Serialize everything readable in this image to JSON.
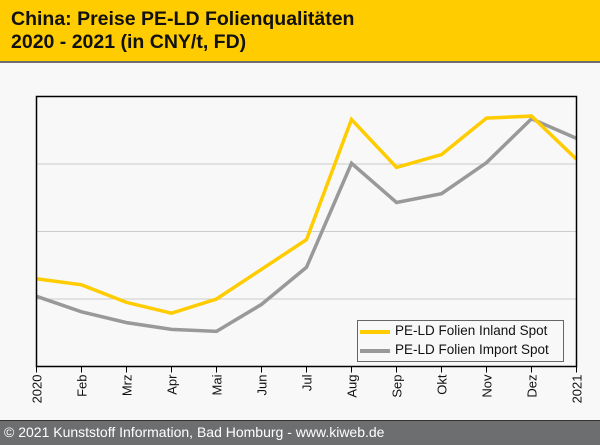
{
  "header": {
    "title_line1": "China: Preise PE-LD Folienqualitäten",
    "title_line2": "2020 - 2021 (in CNY/t, FD)"
  },
  "footer": {
    "text": "© 2021 Kunststoff Information, Bad Homburg - www.kiweb.de"
  },
  "colors": {
    "header_bg": "#ffcc00",
    "footer_bg": "#6d6e70",
    "inland": "#ffcc00",
    "import": "#999999",
    "grid": "#cccccc"
  },
  "chart_data": {
    "type": "line",
    "title": "China: Preise PE-LD Folienqualitäten 2020 - 2021 (in CNY/t, FD)",
    "xlabel": "",
    "ylabel": "",
    "y_units_note": "no y-axis tick labels shown; values in relative gridline units (0 = plot bottom, 4 = plot top)",
    "ylim": [
      0,
      4
    ],
    "y_gridlines": [
      1,
      2,
      3
    ],
    "grid": true,
    "legend_position": "bottom-right",
    "categories": [
      "2020",
      "Feb",
      "Mrz",
      "Apr",
      "Mai",
      "Jun",
      "Jul",
      "Aug",
      "Sep",
      "Okt",
      "Nov",
      "Dez",
      "2021"
    ],
    "series": [
      {
        "name": "PE-LD Folien Inland Spot",
        "color": "#ffcc00",
        "values": [
          1.3,
          1.21,
          0.95,
          0.79,
          1.0,
          1.44,
          1.88,
          3.66,
          2.95,
          3.14,
          3.68,
          3.71,
          3.07
        ]
      },
      {
        "name": "PE-LD Folien Import Spot",
        "color": "#999999",
        "values": [
          1.04,
          0.81,
          0.65,
          0.55,
          0.52,
          0.92,
          1.47,
          3.01,
          2.43,
          2.56,
          3.02,
          3.67,
          3.38
        ]
      }
    ]
  }
}
